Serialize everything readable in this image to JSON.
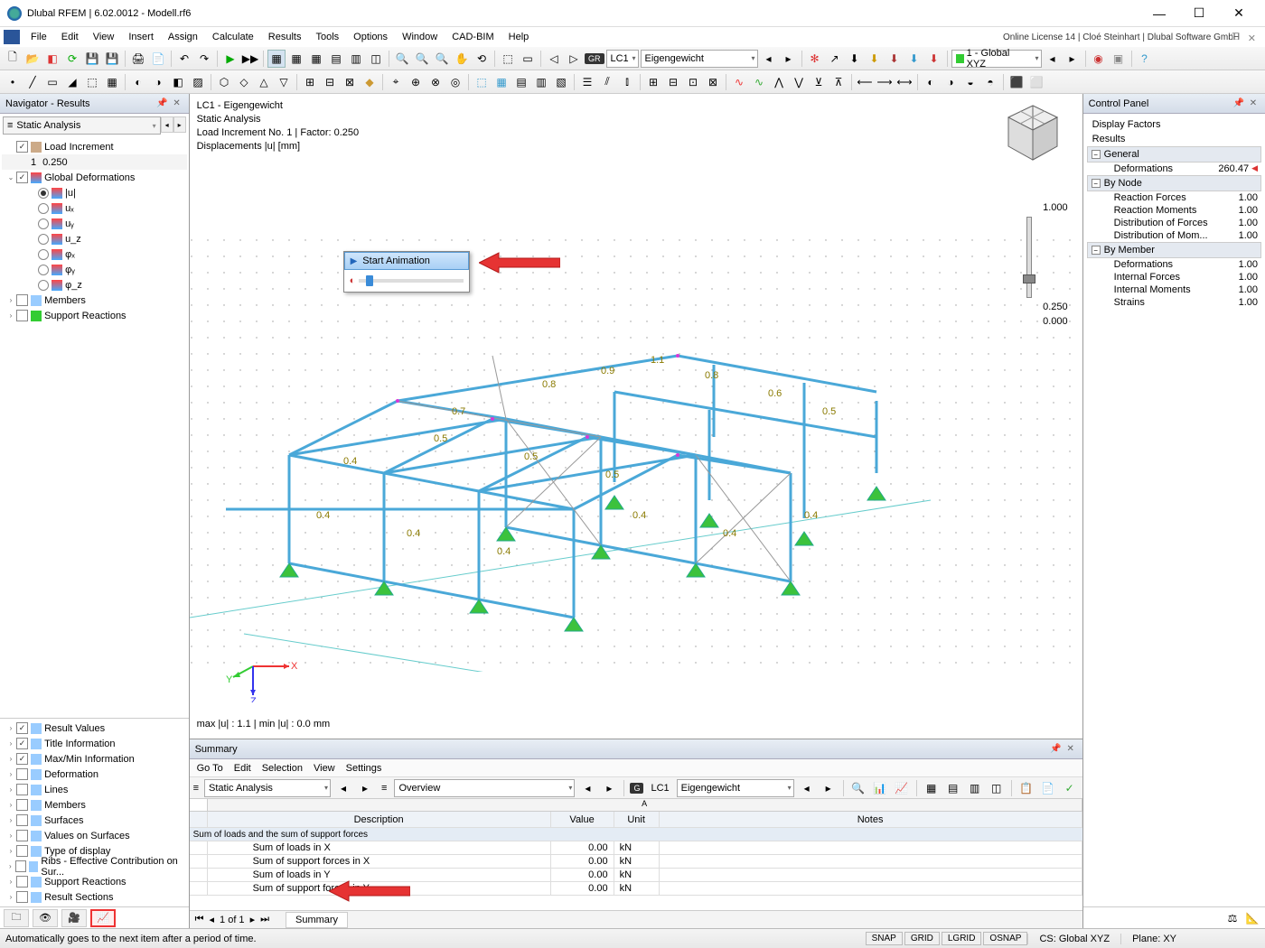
{
  "title": "Dlubal RFEM | 6.02.0012 - Modell.rf6",
  "license_line": "Online License 14 | Cloé Steinhart | Dlubal Software GmbH",
  "menubar": [
    "File",
    "Edit",
    "View",
    "Insert",
    "Assign",
    "Calculate",
    "Results",
    "Tools",
    "Options",
    "Window",
    "CAD-BIM",
    "Help"
  ],
  "toolbar1": {
    "lc_badge": "GR",
    "lc_code": "LC1",
    "lc_name": "Eigengewicht",
    "cs_label": "1 - Global XYZ"
  },
  "navigator": {
    "title": "Navigator - Results",
    "combo": "Static Analysis",
    "tree": {
      "load_inc": "Load Increment",
      "load_inc_row_num": "1",
      "load_inc_row_val": "0.250",
      "global_def": "Global Deformations",
      "def_items": [
        "|u|",
        "uₓ",
        "uᵧ",
        "u_z",
        "φₓ",
        "φᵧ",
        "φ_z"
      ],
      "members": "Members",
      "support_reactions": "Support Reactions"
    },
    "bottom_items": [
      {
        "label": "Result Values",
        "checked": true
      },
      {
        "label": "Title Information",
        "checked": true
      },
      {
        "label": "Max/Min Information",
        "checked": true
      },
      {
        "label": "Deformation",
        "checked": false
      },
      {
        "label": "Lines",
        "checked": false
      },
      {
        "label": "Members",
        "checked": false
      },
      {
        "label": "Surfaces",
        "checked": false
      },
      {
        "label": "Values on Surfaces",
        "checked": false
      },
      {
        "label": "Type of display",
        "checked": false
      },
      {
        "label": "Ribs - Effective Contribution on Sur...",
        "checked": false
      },
      {
        "label": "Support Reactions",
        "checked": false
      },
      {
        "label": "Result Sections",
        "checked": false
      }
    ]
  },
  "animation": {
    "label": "Start Animation"
  },
  "viewport": {
    "line1": "LC1 - Eigengewicht",
    "line2": "Static Analysis",
    "line3": "Load Increment No. 1 | Factor: 0.250",
    "line4": "Displacements |u| [mm]",
    "stats": "max |u| : 1.1 | min |u| : 0.0 mm",
    "scale": {
      "top": "1.000",
      "mid": "0.250",
      "bot": "0.000"
    },
    "point_labels": [
      "0.4",
      "0.5",
      "0.6",
      "0.7",
      "0.8",
      "0.9",
      "1.1"
    ],
    "structure_color": "#6bc5e8",
    "support_color": "#3cc23c",
    "brace_color": "#888888"
  },
  "control_panel": {
    "title": "Control Panel",
    "h1": "Display Factors",
    "h2": "Results",
    "sections": [
      {
        "name": "General",
        "items": [
          {
            "l": "Deformations",
            "v": "260.47",
            "red": true
          }
        ]
      },
      {
        "name": "By Node",
        "items": [
          {
            "l": "Reaction Forces",
            "v": "1.00"
          },
          {
            "l": "Reaction Moments",
            "v": "1.00"
          },
          {
            "l": "Distribution of Forces",
            "v": "1.00"
          },
          {
            "l": "Distribution of Mom...",
            "v": "1.00"
          }
        ]
      },
      {
        "name": "By Member",
        "items": [
          {
            "l": "Deformations",
            "v": "1.00"
          },
          {
            "l": "Internal Forces",
            "v": "1.00"
          },
          {
            "l": "Internal Moments",
            "v": "1.00"
          },
          {
            "l": "Strains",
            "v": "1.00"
          }
        ]
      }
    ]
  },
  "summary": {
    "title": "Summary",
    "menu": [
      "Go To",
      "Edit",
      "Selection",
      "View",
      "Settings"
    ],
    "combo1": "Static Analysis",
    "combo2": "Overview",
    "lc_badge": "G",
    "lc_code": "LC1",
    "lc_name": "Eigengewicht",
    "cols": [
      "Description",
      "Value",
      "Unit",
      "Notes"
    ],
    "section_head": "Sum of loads and the sum of support forces",
    "rows": [
      {
        "d": "Sum of loads in X",
        "v": "0.00",
        "u": "kN"
      },
      {
        "d": "Sum of support forces in X",
        "v": "0.00",
        "u": "kN"
      },
      {
        "d": "Sum of loads in Y",
        "v": "0.00",
        "u": "kN"
      },
      {
        "d": "Sum of support forces in Y",
        "v": "0.00",
        "u": "kN"
      }
    ],
    "pager": "1 of 1",
    "pager_tab": "Summary"
  },
  "statusbar": {
    "text": "Automatically goes to the next item after a period of time.",
    "snap_btns": [
      "SNAP",
      "GRID",
      "LGRID",
      "OSNAP"
    ],
    "cs": "CS: Global XYZ",
    "plane": "Plane: XY"
  }
}
